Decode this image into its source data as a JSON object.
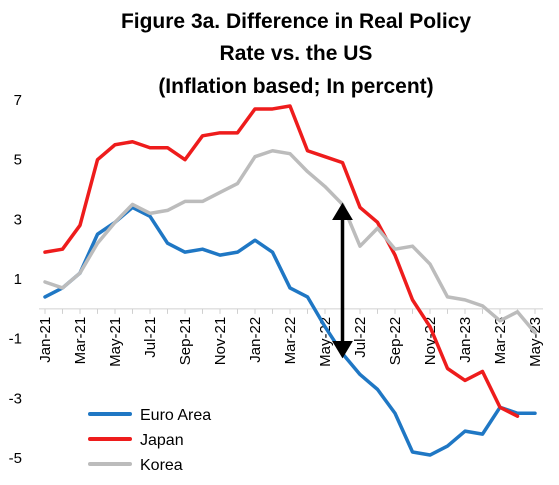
{
  "chart_data": {
    "type": "line",
    "title": [
      "Figure 3a. Difference in Real Policy",
      "Rate vs. the US",
      "(Inflation based; In percent)"
    ],
    "xlabel": "",
    "ylabel": "",
    "ylim": [
      -5,
      7
    ],
    "yticks": [
      7,
      5,
      3,
      1,
      -1,
      -3,
      -5
    ],
    "yticks_display": [
      "7",
      "5",
      "3",
      "1",
      "-1",
      "-3",
      "-5"
    ],
    "x_tick_labels": [
      "Jan-21",
      "Mar-21",
      "May-21",
      "Jul-21",
      "Sep-21",
      "Nov-21",
      "Jan-22",
      "Mar-22",
      "May-22",
      "Jul-22",
      "Sep-22",
      "Nov-22",
      "Jan-23",
      "Mar-23",
      "May-23"
    ],
    "categories": [
      "Jan-21",
      "Feb-21",
      "Mar-21",
      "Apr-21",
      "May-21",
      "Jun-21",
      "Jul-21",
      "Aug-21",
      "Sep-21",
      "Oct-21",
      "Nov-21",
      "Dec-21",
      "Jan-22",
      "Feb-22",
      "Mar-22",
      "Apr-22",
      "May-22",
      "Jun-22",
      "Jul-22",
      "Aug-22",
      "Sep-22",
      "Oct-22",
      "Nov-22",
      "Dec-22",
      "Jan-23",
      "Feb-23",
      "Mar-23",
      "Apr-23",
      "May-23"
    ],
    "grid": false,
    "legend": "bottom-left",
    "series": [
      {
        "name": "Euro Area",
        "color": "#1f77c4",
        "values": [
          0.4,
          0.7,
          1.2,
          2.5,
          2.9,
          3.4,
          3.1,
          2.2,
          1.9,
          2.0,
          1.8,
          1.9,
          2.3,
          1.9,
          0.7,
          0.4,
          -0.6,
          -1.5,
          -2.2,
          -2.7,
          -3.5,
          -4.8,
          -4.9,
          -4.6,
          -4.1,
          -4.2,
          -3.3,
          -3.5,
          -3.5
        ]
      },
      {
        "name": "Japan",
        "color": "#ee1c1c",
        "values": [
          1.9,
          2.0,
          2.8,
          5.0,
          5.5,
          5.6,
          5.4,
          5.4,
          5.0,
          5.8,
          5.9,
          5.9,
          6.7,
          6.7,
          6.8,
          5.3,
          5.1,
          4.9,
          3.4,
          2.9,
          1.8,
          0.3,
          -0.6,
          -2.0,
          -2.4,
          -2.1,
          -3.3,
          -3.6,
          null
        ]
      },
      {
        "name": "Korea",
        "color": "#bcbcbc",
        "values": [
          0.9,
          0.7,
          1.2,
          2.2,
          2.9,
          3.5,
          3.2,
          3.3,
          3.6,
          3.6,
          3.9,
          4.2,
          5.1,
          5.3,
          5.2,
          4.6,
          4.1,
          3.5,
          2.1,
          2.7,
          2.0,
          2.1,
          1.5,
          0.4,
          0.3,
          0.1,
          -0.4,
          -0.1,
          -0.8
        ]
      }
    ],
    "annotations": [
      {
        "type": "double-arrow",
        "x_category": "Jun-22",
        "y_from": 3.4,
        "y_to": -1.5,
        "color": "#000000"
      }
    ]
  }
}
